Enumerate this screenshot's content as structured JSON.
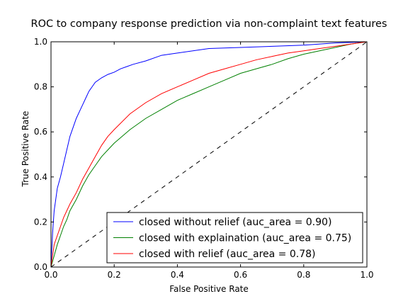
{
  "chart_data": {
    "type": "line",
    "title": "ROC to company response prediction via non-complaint text features",
    "xlabel": "False Positive Rate",
    "ylabel": "True Positive Rate",
    "xlim": [
      0.0,
      1.0
    ],
    "ylim": [
      0.0,
      1.0
    ],
    "x_ticks": [
      "0.0",
      "0.2",
      "0.4",
      "0.6",
      "0.8",
      "1.0"
    ],
    "y_ticks": [
      "0.0",
      "0.2",
      "0.4",
      "0.6",
      "0.8",
      "1.0"
    ],
    "grid": false,
    "legend_position": "lower-right",
    "series": [
      {
        "name": "closed without relief (auc_area = 0.90)",
        "color": "#0000ff",
        "x": [
          0.0,
          0.005,
          0.01,
          0.02,
          0.03,
          0.04,
          0.05,
          0.06,
          0.07,
          0.08,
          0.09,
          0.1,
          0.11,
          0.12,
          0.13,
          0.14,
          0.16,
          0.18,
          0.2,
          0.22,
          0.24,
          0.26,
          0.3,
          0.35,
          0.4,
          0.5,
          0.6,
          0.7,
          0.8,
          0.9,
          1.0
        ],
        "y": [
          0.0,
          0.15,
          0.25,
          0.35,
          0.4,
          0.46,
          0.52,
          0.58,
          0.62,
          0.66,
          0.69,
          0.72,
          0.75,
          0.78,
          0.8,
          0.82,
          0.84,
          0.855,
          0.865,
          0.88,
          0.89,
          0.9,
          0.915,
          0.94,
          0.95,
          0.97,
          0.975,
          0.98,
          0.985,
          0.995,
          1.0
        ]
      },
      {
        "name": "closed with explaination (auc_area = 0.75)",
        "color": "#008000",
        "x": [
          0.0,
          0.01,
          0.02,
          0.03,
          0.04,
          0.05,
          0.06,
          0.08,
          0.1,
          0.12,
          0.14,
          0.16,
          0.18,
          0.2,
          0.25,
          0.3,
          0.35,
          0.4,
          0.45,
          0.5,
          0.55,
          0.6,
          0.65,
          0.7,
          0.75,
          0.8,
          0.85,
          0.9,
          0.95,
          1.0
        ],
        "y": [
          0.0,
          0.05,
          0.1,
          0.14,
          0.18,
          0.21,
          0.25,
          0.3,
          0.36,
          0.41,
          0.45,
          0.49,
          0.52,
          0.55,
          0.61,
          0.66,
          0.7,
          0.74,
          0.77,
          0.8,
          0.83,
          0.86,
          0.88,
          0.9,
          0.925,
          0.945,
          0.96,
          0.975,
          0.99,
          1.0
        ]
      },
      {
        "name": "closed with relief (auc_area = 0.78)",
        "color": "#ff0000",
        "x": [
          0.0,
          0.01,
          0.02,
          0.03,
          0.04,
          0.05,
          0.06,
          0.08,
          0.1,
          0.12,
          0.14,
          0.16,
          0.18,
          0.2,
          0.25,
          0.3,
          0.35,
          0.4,
          0.45,
          0.5,
          0.55,
          0.6,
          0.65,
          0.7,
          0.75,
          0.8,
          0.85,
          0.9,
          0.95,
          1.0
        ],
        "y": [
          0.0,
          0.1,
          0.14,
          0.18,
          0.22,
          0.25,
          0.28,
          0.33,
          0.39,
          0.44,
          0.49,
          0.54,
          0.58,
          0.61,
          0.68,
          0.73,
          0.77,
          0.8,
          0.83,
          0.86,
          0.88,
          0.9,
          0.92,
          0.935,
          0.95,
          0.96,
          0.97,
          0.98,
          0.99,
          1.0
        ]
      },
      {
        "name": "",
        "color": "#000000",
        "dashed": true,
        "x": [
          0.0,
          1.0
        ],
        "y": [
          0.0,
          1.0
        ]
      }
    ]
  }
}
